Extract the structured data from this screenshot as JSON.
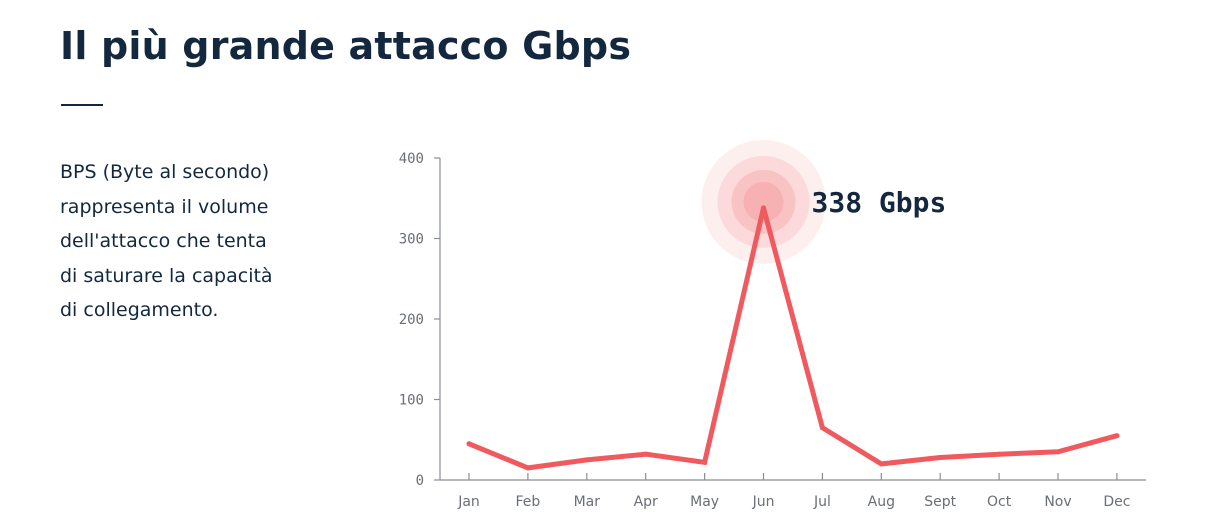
{
  "header": {
    "title": "Il più grande attacco Gbps"
  },
  "description": "BPS (Byte al secondo)\nrappresenta il volume\ndell'attacco che tenta\ndi  saturare la capacità\ndi collegamento.",
  "colors": {
    "text": "#13283f",
    "line": "#f05a5e",
    "axis": "#8a8f95",
    "glow": "#f7a7a9"
  },
  "chart_data": {
    "type": "line",
    "title": "",
    "xlabel": "",
    "ylabel": "",
    "categories": [
      "Jan",
      "Feb",
      "Mar",
      "Apr",
      "May",
      "Jun",
      "Jul",
      "Aug",
      "Sept",
      "Oct",
      "Nov",
      "Dec"
    ],
    "values": [
      45,
      15,
      25,
      32,
      22,
      338,
      65,
      20,
      28,
      32,
      35,
      55
    ],
    "ylim": [
      0,
      400
    ],
    "yticks": [
      "0",
      "100",
      "200",
      "300",
      "400"
    ],
    "grid": false,
    "legend": "none",
    "highlight": {
      "category": "Jun",
      "value": 338,
      "label": "338 Gbps"
    }
  }
}
